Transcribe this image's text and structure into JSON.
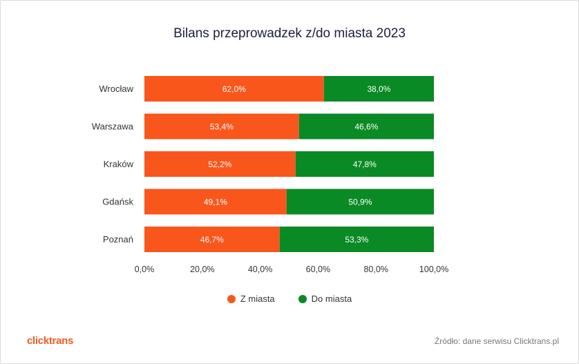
{
  "title": "Bilans przeprowadzek z/do miasta 2023",
  "colors": {
    "series0": "#f9561c",
    "series1": "#0a8a25"
  },
  "chart_data": {
    "type": "bar",
    "orientation": "horizontal",
    "stacked": true,
    "categories": [
      "Wrocław",
      "Warszawa",
      "Kraków",
      "Gdańsk",
      "Poznań"
    ],
    "series": [
      {
        "name": "Z miasta",
        "values": [
          62.0,
          53.4,
          52.2,
          49.1,
          46.7
        ],
        "labels": [
          "62,0%",
          "53,4%",
          "52,2%",
          "49,1%",
          "46,7%"
        ]
      },
      {
        "name": "Do miasta",
        "values": [
          38.0,
          46.6,
          47.8,
          50.9,
          53.3
        ],
        "labels": [
          "38,0%",
          "46,6%",
          "47,8%",
          "50,9%",
          "53,3%"
        ]
      }
    ],
    "xlim": [
      0,
      100
    ],
    "xticks": [
      "0,0%",
      "20,0%",
      "40,0%",
      "60,0%",
      "80,0%",
      "100,0%"
    ],
    "grid": false,
    "legend_position": "bottom"
  },
  "legend": {
    "items": [
      "Z miasta",
      "Do miasta"
    ]
  },
  "footer": {
    "brand": "clicktrans",
    "source": "Źródło: dane serwisu Clicktrans.pl"
  }
}
